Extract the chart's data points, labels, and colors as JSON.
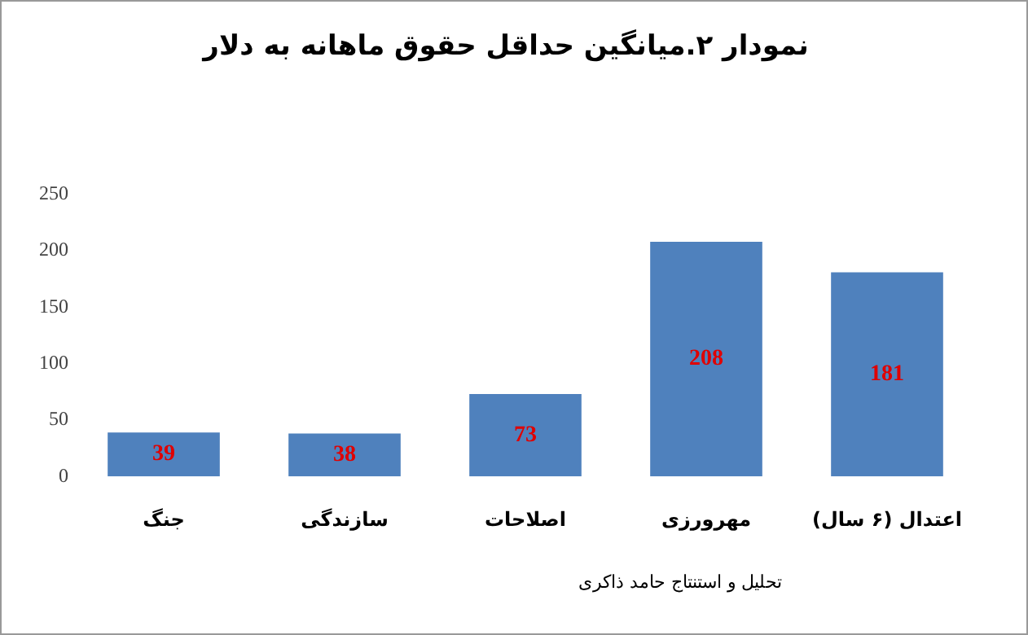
{
  "chart_data": {
    "type": "bar",
    "title": "نمودار ۲.میانگین حداقل حقوق ماهانه به دلار",
    "categories": [
      "جنگ",
      "سازندگی",
      "اصلاحات",
      "مهرورزی",
      "اعتدال (۶ سال)"
    ],
    "values": [
      39,
      38,
      73,
      208,
      181
    ],
    "color": "#4f81bd",
    "ylim": [
      0,
      250
    ],
    "yticks": [
      0,
      50,
      100,
      150,
      200,
      250
    ],
    "grid": false,
    "legend": false,
    "data_labels": true,
    "annotations": [
      "تحلیل و استنتاج حامد ذاکری"
    ]
  }
}
